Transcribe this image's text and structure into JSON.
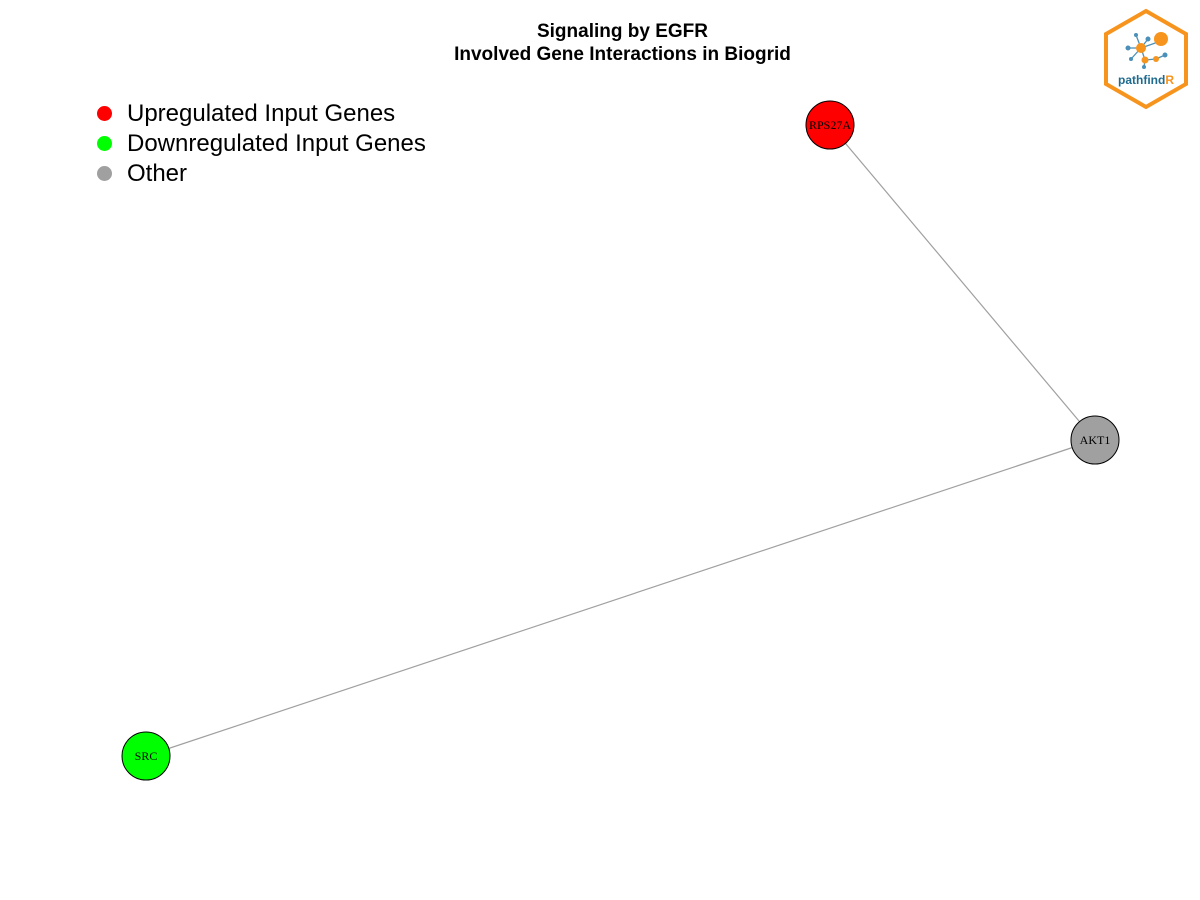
{
  "title": {
    "line1": "Signaling by EGFR",
    "line2": "Involved Gene Interactions in Biogrid"
  },
  "legend": {
    "items": [
      {
        "label": "Upregulated Input Genes",
        "color": "#ff0000"
      },
      {
        "label": "Downregulated Input Genes",
        "color": "#00ff00"
      },
      {
        "label": "Other",
        "color": "#a0a0a0"
      }
    ]
  },
  "network": {
    "nodes": [
      {
        "id": "RPS27A",
        "label": "RPS27A",
        "group": "Upregulated Input Genes",
        "color": "#ff0000"
      },
      {
        "id": "AKT1",
        "label": "AKT1",
        "group": "Other",
        "color": "#a0a0a0"
      },
      {
        "id": "SRC",
        "label": "SRC",
        "group": "Downregulated Input Genes",
        "color": "#00ff00"
      }
    ],
    "edges": [
      {
        "source": "RPS27A",
        "target": "AKT1"
      },
      {
        "source": "AKT1",
        "target": "SRC"
      }
    ],
    "edge_color": "#a0a0a0"
  },
  "logo": {
    "text_main": "pathfind",
    "text_accent": "R",
    "border_color": "#f7941d",
    "text_color": "#1f6b8e"
  }
}
